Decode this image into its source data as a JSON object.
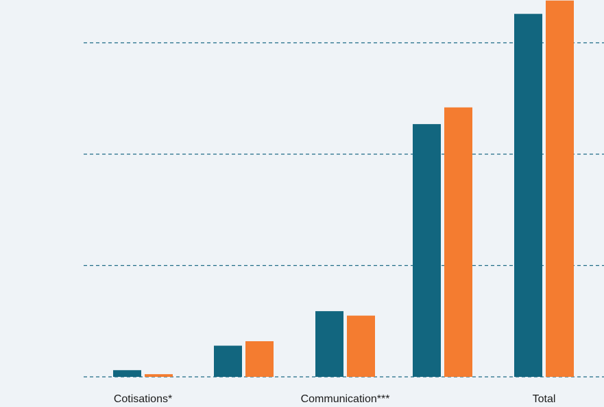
{
  "chart_data": {
    "type": "bar",
    "categories": [
      "Cotisations*",
      "",
      "Communication***",
      "",
      "Total"
    ],
    "x_tick_labels": [
      "Cotisations*",
      "Communication***",
      "Total"
    ],
    "series": [
      {
        "values": [
          3,
          14,
          29.5,
          113.5,
          163
        ]
      },
      {
        "values": [
          1.2,
          16,
          27.5,
          121,
          169
        ]
      }
    ],
    "ylim": [
      0,
      170
    ],
    "yticks": [
      0,
      50,
      100,
      150
    ],
    "grid": true,
    "xlabel": "",
    "ylabel": "",
    "colors": {
      "series": [
        "#12667f",
        "#f47c30"
      ],
      "grid": "#1e6a86",
      "background": "#eff3f7"
    }
  }
}
